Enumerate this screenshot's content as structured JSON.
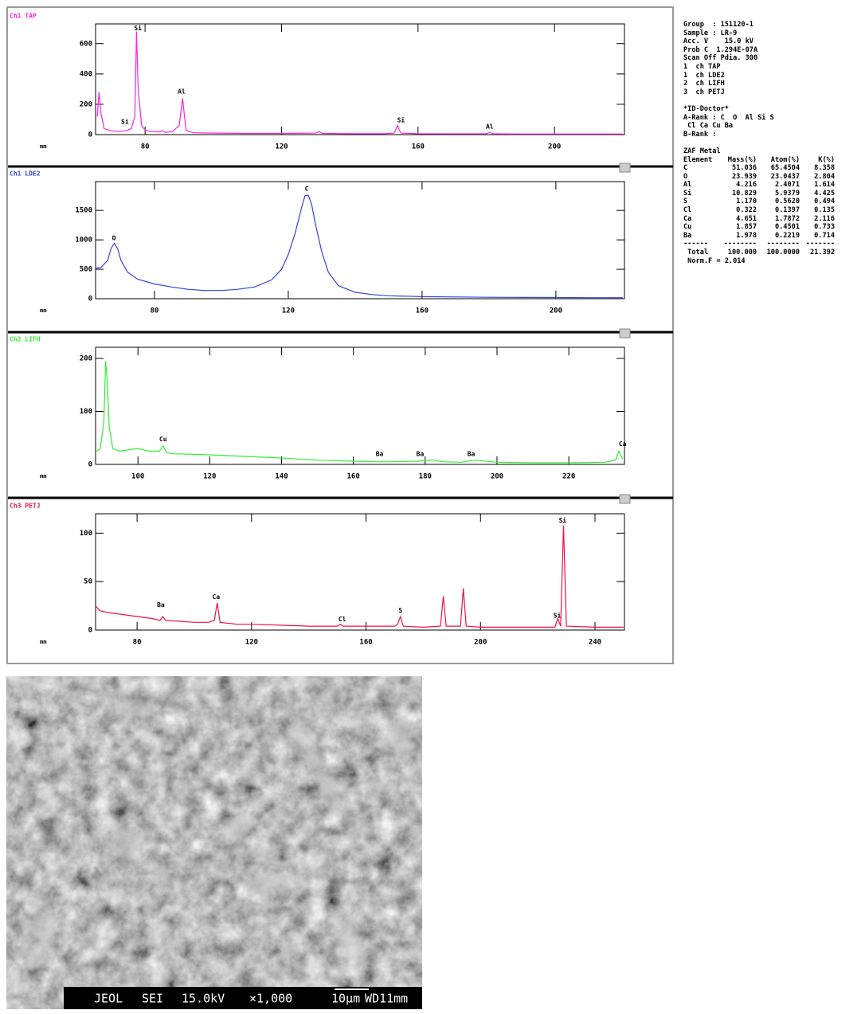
{
  "chart_data": [
    {
      "type": "line",
      "title": "Ch1 TAP",
      "color": "#ff22dd",
      "xlabel": "mm",
      "xlim": [
        65.5,
        220.5
      ],
      "xticks": [
        80,
        120,
        160,
        200
      ],
      "ylim": [
        0,
        730
      ],
      "yticks": [
        0,
        200,
        400,
        600
      ],
      "x": [
        66,
        66.5,
        67,
        68,
        70,
        72,
        74,
        75,
        76,
        77,
        77.5,
        78,
        79,
        80,
        82,
        84,
        85,
        86,
        88,
        90,
        91,
        92,
        94,
        100,
        110,
        120,
        130,
        131,
        132,
        140,
        150,
        153,
        154,
        154.5,
        155,
        160,
        170,
        180,
        181,
        182,
        190,
        200,
        210,
        220
      ],
      "values": [
        120,
        280,
        150,
        40,
        25,
        20,
        25,
        30,
        40,
        120,
        680,
        300,
        60,
        30,
        20,
        18,
        25,
        15,
        20,
        60,
        240,
        30,
        12,
        10,
        8,
        8,
        10,
        20,
        8,
        6,
        6,
        10,
        60,
        30,
        10,
        6,
        5,
        5,
        15,
        5,
        4,
        4,
        4,
        4
      ],
      "annotations": [
        {
          "text": "Si",
          "x": 77.9,
          "y": 700
        },
        {
          "text": "Si",
          "x": 74.1,
          "y": 84
        },
        {
          "text": "Al",
          "x": 90.7,
          "y": 284
        },
        {
          "text": "Si",
          "x": 155,
          "y": 95
        },
        {
          "text": "Al",
          "x": 181,
          "y": 53
        }
      ]
    },
    {
      "type": "line",
      "title": "Ch1 LDE2",
      "color": "#3344dd",
      "xlabel": "mm",
      "xlim": [
        62.4,
        220.5
      ],
      "xticks": [
        80,
        120,
        160,
        200
      ],
      "ylim": [
        0,
        1990
      ],
      "yticks": [
        0,
        500,
        1000,
        1500
      ],
      "x": [
        62.5,
        64,
        66,
        67,
        68,
        69,
        70,
        72,
        75,
        80,
        85,
        90,
        95,
        100,
        105,
        110,
        115,
        118,
        120,
        122,
        124,
        125,
        126,
        127,
        128,
        130,
        132,
        135,
        140,
        145,
        150,
        160,
        170,
        180,
        190,
        200,
        210,
        220
      ],
      "values": [
        520,
        530,
        650,
        850,
        940,
        850,
        650,
        450,
        330,
        250,
        200,
        160,
        140,
        140,
        160,
        200,
        320,
        500,
        750,
        1100,
        1550,
        1750,
        1760,
        1600,
        1300,
        800,
        450,
        220,
        110,
        70,
        50,
        35,
        30,
        25,
        22,
        20,
        18,
        18
      ],
      "annotations": [
        {
          "text": "O",
          "x": 67.9,
          "y": 1030
        },
        {
          "text": "C",
          "x": 125.5,
          "y": 1865
        }
      ]
    },
    {
      "type": "line",
      "title": "Ch2 LIFH",
      "color": "#33ee33",
      "xlabel": "mm",
      "xlim": [
        88.2,
        235.5
      ],
      "xticks": [
        100,
        120,
        140,
        160,
        180,
        200,
        220
      ],
      "ylim": [
        0,
        221
      ],
      "yticks": [
        0,
        100,
        200
      ],
      "x": [
        88.5,
        89.5,
        90.5,
        91,
        91.5,
        92,
        93,
        95,
        98,
        100,
        103,
        106,
        107,
        108,
        110,
        120,
        130,
        140,
        150,
        160,
        166,
        170,
        178,
        182,
        185,
        190,
        194,
        200,
        210,
        220,
        230,
        233,
        234,
        235
      ],
      "values": [
        25,
        30,
        80,
        195,
        150,
        70,
        30,
        25,
        28,
        30,
        25,
        25,
        35,
        22,
        20,
        18,
        15,
        12,
        8,
        6,
        5,
        5,
        6,
        8,
        5,
        4,
        8,
        4,
        3,
        3,
        4,
        8,
        25,
        10
      ],
      "annotations": [
        {
          "text": "Cu",
          "x": 107,
          "y": 47
        },
        {
          "text": "Ba",
          "x": 167.3,
          "y": 19.5
        },
        {
          "text": "Ba",
          "x": 178.6,
          "y": 19.5
        },
        {
          "text": "Ba",
          "x": 192.8,
          "y": 19.5
        },
        {
          "text": "Ca",
          "x": 235,
          "y": 38
        }
      ]
    },
    {
      "type": "line",
      "title": "Ch3 PETJ",
      "color": "#ee1144",
      "xlabel": "mm",
      "xlim": [
        65.5,
        250.3
      ],
      "xticks": [
        80,
        120,
        160,
        200,
        240
      ],
      "ylim": [
        0,
        120
      ],
      "yticks": [
        0,
        50,
        100
      ],
      "x": [
        65.5,
        67,
        70,
        75,
        80,
        85,
        88,
        89,
        90,
        95,
        100,
        105,
        107,
        108,
        109,
        115,
        120,
        130,
        140,
        150,
        151,
        152,
        160,
        170,
        171,
        172,
        173,
        180,
        186,
        187,
        188,
        193,
        194,
        195,
        200,
        210,
        220,
        226,
        227,
        228,
        229,
        230,
        240,
        250
      ],
      "values": [
        25,
        20,
        18,
        16,
        14,
        12,
        10,
        14,
        10,
        9,
        8,
        8,
        10,
        28,
        8,
        6,
        6,
        5,
        4,
        4,
        6,
        4,
        4,
        4,
        6,
        14,
        4,
        3,
        4,
        35,
        4,
        4,
        43,
        4,
        3,
        3,
        3,
        3,
        12,
        4,
        108,
        4,
        3,
        3
      ],
      "annotations": [
        {
          "text": "Ba",
          "x": 88.3,
          "y": 26
        },
        {
          "text": "Ca",
          "x": 107.6,
          "y": 34
        },
        {
          "text": "Cl",
          "x": 151.7,
          "y": 11
        },
        {
          "text": "S",
          "x": 172,
          "y": 20
        },
        {
          "text": "Si",
          "x": 228.7,
          "y": 113
        },
        {
          "text": "Si",
          "x": 226.8,
          "y": 15
        }
      ]
    }
  ],
  "side_panel": {
    "header_lines": [
      "Group  : 151120-1",
      "Sample : LR-9",
      "Acc. V    15.0 kV",
      "Prob C  1.294E-07A",
      "Scan Off Pdia. 300",
      "1  ch TAP",
      "1  ch LDE2",
      "2  ch LIFH",
      "3  ch PETJ"
    ],
    "id_doctor_lines": [
      "*ID-Doctor*",
      "A-Rank : C  O  Al Si S",
      " Cl Ca Cu Ba",
      "B-Rank :"
    ],
    "zaf_title": "ZAF Metal",
    "table_header": [
      "Element",
      "Mass(%)",
      "Atom(%)",
      "K(%)"
    ],
    "table_rows": [
      [
        "C",
        "51.036",
        "65.4504",
        "8.358"
      ],
      [
        "O",
        "23.939",
        "23.0437",
        "2.804"
      ],
      [
        "Al",
        "4.216",
        "2.4071",
        "1.614"
      ],
      [
        "Si",
        "10.829",
        "5.9379",
        "4.425"
      ],
      [
        "S",
        "1.170",
        "0.5620",
        "0.494"
      ],
      [
        "Cl",
        "0.322",
        "0.1397",
        "0.135"
      ],
      [
        "Ca",
        "4.651",
        "1.7872",
        "2.116"
      ],
      [
        "Cu",
        "1.857",
        "0.4501",
        "0.733"
      ],
      [
        "Ba",
        "1.978",
        "0.2219",
        "0.714"
      ]
    ],
    "table_divider": [
      "------",
      "--------",
      "--------",
      "-------"
    ],
    "total_row": [
      " Total",
      "100.000",
      "100.0000",
      "21.392"
    ],
    "norm_line": " Norm.F = 2.014"
  },
  "sem_image": {
    "instrument": "JEOL",
    "mode": "SEI",
    "voltage": "15.0kV",
    "magnification": "×1,000",
    "scale": "10μm",
    "working_distance": "WD11mm"
  }
}
